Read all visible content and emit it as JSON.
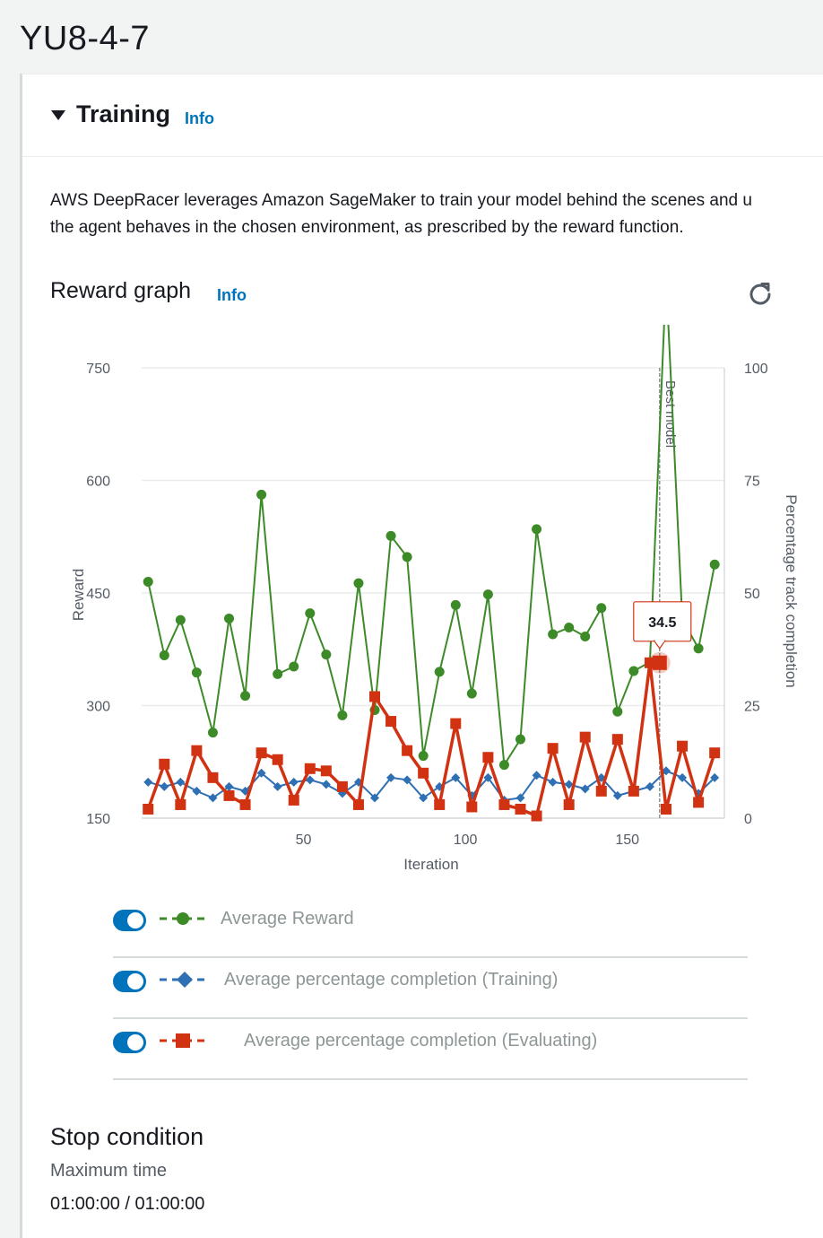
{
  "page": {
    "title": "YU8-4-7"
  },
  "panel": {
    "title": "Training",
    "info_label": "Info",
    "description_line1": "AWS DeepRacer leverages Amazon SageMaker to train your model behind the scenes and u",
    "description_line2": "the agent behaves in the chosen environment, as prescribed by the reward function."
  },
  "graph": {
    "title": "Reward graph",
    "info_label": "Info",
    "refresh_icon": "refresh-icon"
  },
  "chart_data": {
    "type": "line",
    "xlabel": "Iteration",
    "ylabel": "Reward",
    "y2label": "Percentage track completion",
    "xlim": [
      0,
      180
    ],
    "ylim": [
      150,
      750
    ],
    "y2lim": [
      0,
      100
    ],
    "xticks": [
      50,
      100,
      150
    ],
    "yticks": [
      150,
      300,
      450,
      600,
      750
    ],
    "y2ticks": [
      0,
      25,
      50,
      75,
      100
    ],
    "grid": true,
    "annotation": {
      "label": "Best model",
      "x": 160
    },
    "tooltip": {
      "x": 160,
      "value": "34.5"
    },
    "series": [
      {
        "name": "Average Reward",
        "axis": "left",
        "color": "#3d8a28",
        "marker": "circle",
        "x": [
          2,
          7,
          12,
          17,
          22,
          27,
          32,
          37,
          42,
          47,
          52,
          57,
          62,
          67,
          72,
          77,
          82,
          87,
          92,
          97,
          102,
          107,
          112,
          117,
          122,
          127,
          132,
          137,
          142,
          147,
          152,
          157,
          162,
          167,
          172,
          177
        ],
        "values": [
          465,
          367,
          414,
          344,
          264,
          416,
          313,
          581,
          342,
          352,
          423,
          368,
          287,
          463,
          294,
          526,
          498,
          233,
          345,
          434,
          316,
          448,
          221,
          255,
          535,
          395,
          404,
          392,
          430,
          292,
          346,
          358,
          870,
          415,
          376,
          488
        ]
      },
      {
        "name": "Average percentage completion (Training)",
        "axis": "right",
        "color": "#2f6fb3",
        "marker": "diamond",
        "x": [
          2,
          7,
          12,
          17,
          22,
          27,
          32,
          37,
          42,
          47,
          52,
          57,
          62,
          67,
          72,
          77,
          82,
          87,
          92,
          97,
          102,
          107,
          112,
          117,
          122,
          127,
          132,
          137,
          142,
          147,
          152,
          157,
          162,
          167,
          172,
          177
        ],
        "values": [
          8,
          7,
          8,
          6,
          4.5,
          7,
          6,
          10,
          7,
          8,
          8.5,
          7.5,
          5.5,
          8,
          4.5,
          9,
          8.5,
          4.5,
          7,
          9,
          5,
          9,
          4,
          4.5,
          9.5,
          8,
          7.5,
          6.5,
          9,
          5,
          6,
          7,
          10.5,
          9,
          5.5,
          9
        ]
      },
      {
        "name": "Average percentage completion (Evaluating)",
        "axis": "right",
        "color": "#d13212",
        "marker": "square",
        "x": [
          2,
          7,
          12,
          17,
          22,
          27,
          32,
          37,
          42,
          47,
          52,
          57,
          62,
          67,
          72,
          77,
          82,
          87,
          92,
          97,
          102,
          107,
          112,
          117,
          122,
          127,
          132,
          137,
          142,
          147,
          152,
          157,
          162,
          167,
          172,
          177
        ],
        "values": [
          2,
          12,
          3,
          15,
          9,
          5,
          3,
          14.5,
          13,
          4,
          11,
          10.5,
          7,
          3,
          27,
          21.5,
          15,
          10,
          3,
          21,
          2.5,
          13.5,
          3,
          2,
          0.5,
          15.5,
          3,
          18,
          6,
          17.5,
          6,
          34.5,
          2,
          16,
          3.5,
          14.5
        ]
      }
    ]
  },
  "legend": {
    "items": [
      {
        "label": "Average Reward",
        "marker": "circle",
        "color": "#3d8a28"
      },
      {
        "label": "Average percentage completion (Training)",
        "marker": "diamond",
        "color": "#2f6fb3"
      },
      {
        "label": "Average percentage completion (Evaluating)",
        "marker": "square",
        "color": "#d13212"
      }
    ]
  },
  "stop_condition": {
    "title": "Stop condition",
    "label": "Maximum time",
    "value": "01:00:00 / 01:00:00"
  }
}
